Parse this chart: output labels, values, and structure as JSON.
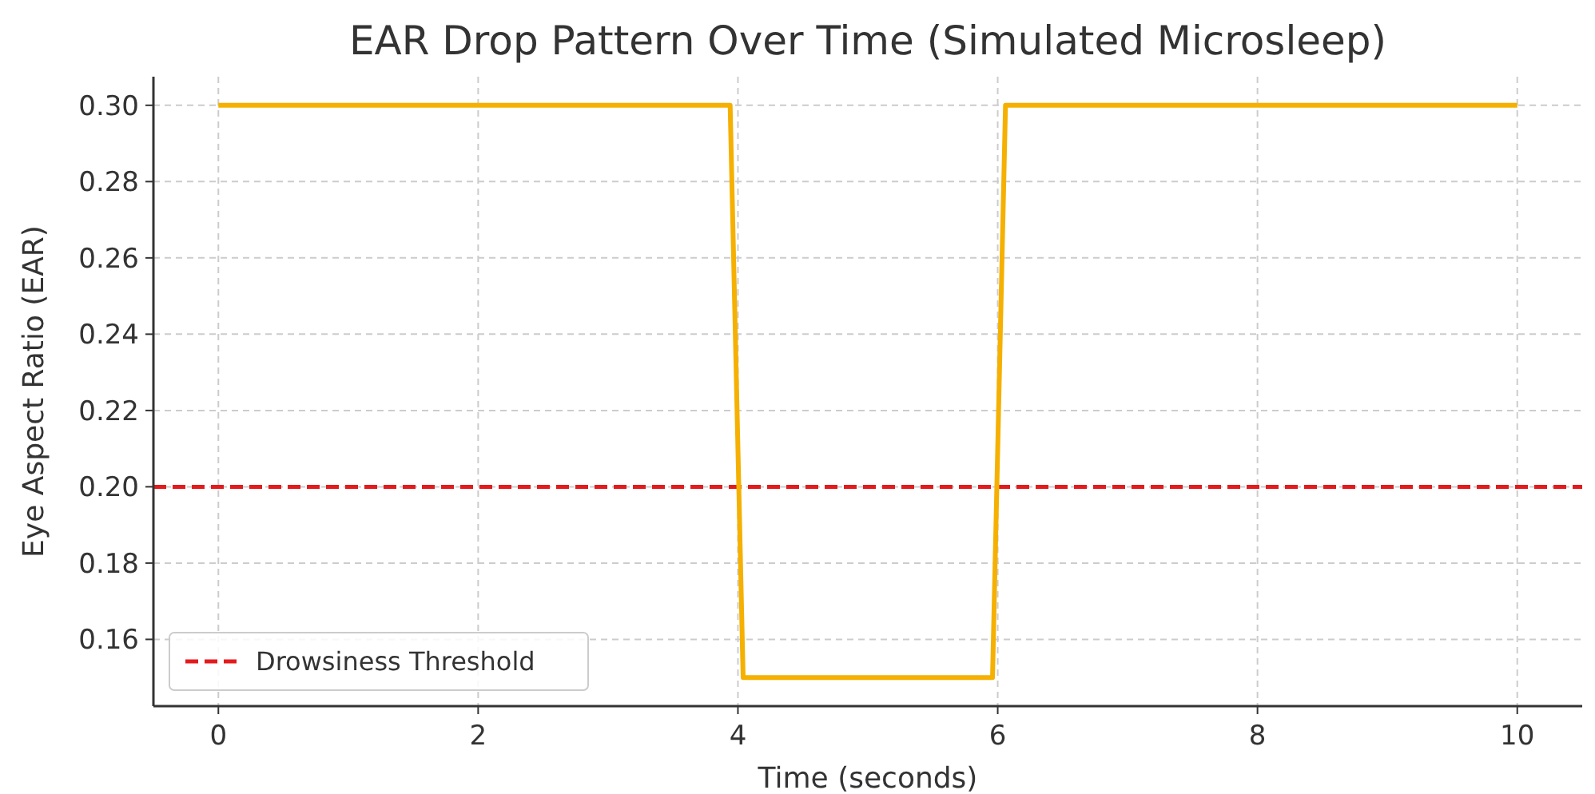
{
  "chart_data": {
    "type": "line",
    "title": "EAR Drop Pattern Over Time (Simulated Microsleep)",
    "xlabel": "Time (seconds)",
    "ylabel": "Eye Aspect Ratio (EAR)",
    "series": [
      {
        "color": "#f5b000",
        "x": [
          0,
          3.94,
          4.04,
          5.96,
          6.06,
          10
        ],
        "values": [
          0.3,
          0.3,
          0.15,
          0.15,
          0.3,
          0.3
        ]
      }
    ],
    "xlim": [
      -0.5,
      10.5
    ],
    "xticks": [
      0,
      2,
      4,
      6,
      8,
      10
    ],
    "ylim": [
      0.1425,
      0.3075
    ],
    "yticks": [
      {
        "value": 0.16,
        "label": "0.16"
      },
      {
        "value": 0.18,
        "label": "0.18"
      },
      {
        "value": 0.2,
        "label": "0.20"
      },
      {
        "value": 0.22,
        "label": "0.22"
      },
      {
        "value": 0.24,
        "label": "0.24"
      },
      {
        "value": 0.26,
        "label": "0.26"
      },
      {
        "value": 0.28,
        "label": "0.28"
      },
      {
        "value": 0.3,
        "label": "0.30"
      }
    ],
    "ref_lines": [
      {
        "axis": "y",
        "value": 0.2,
        "label": "Drowsiness Threshold",
        "color": "#e41a1c",
        "line_style": "dashed"
      }
    ],
    "grid": true,
    "legend": "bottom left",
    "marker": "none",
    "line_style": "solid"
  }
}
